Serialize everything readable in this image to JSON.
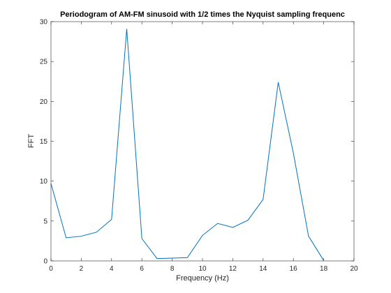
{
  "chart_data": {
    "type": "line",
    "title": "Periodogram of AM-FM sinusoid with 1/2 times the Nyquist sampling frequenc",
    "xlabel": "Frequency (Hz)",
    "ylabel": "FFT",
    "xlim": [
      0,
      20
    ],
    "ylim": [
      0,
      30
    ],
    "xticks": [
      0,
      2,
      4,
      6,
      8,
      10,
      12,
      14,
      16,
      18,
      20
    ],
    "yticks": [
      0,
      5,
      10,
      15,
      20,
      25,
      30
    ],
    "grid": false,
    "line_color": "#0072BD",
    "series": [
      {
        "x": [
          0,
          1,
          2,
          3,
          4,
          5,
          6,
          7,
          8,
          9,
          10,
          11,
          12,
          13,
          14,
          15,
          16,
          17,
          18
        ],
        "values": [
          9.7,
          2.9,
          3.1,
          3.6,
          5.2,
          29.1,
          2.8,
          0.3,
          0.35,
          0.4,
          3.2,
          4.7,
          4.2,
          5.1,
          7.7,
          22.4,
          13.5,
          3.1,
          0.05
        ]
      }
    ]
  }
}
